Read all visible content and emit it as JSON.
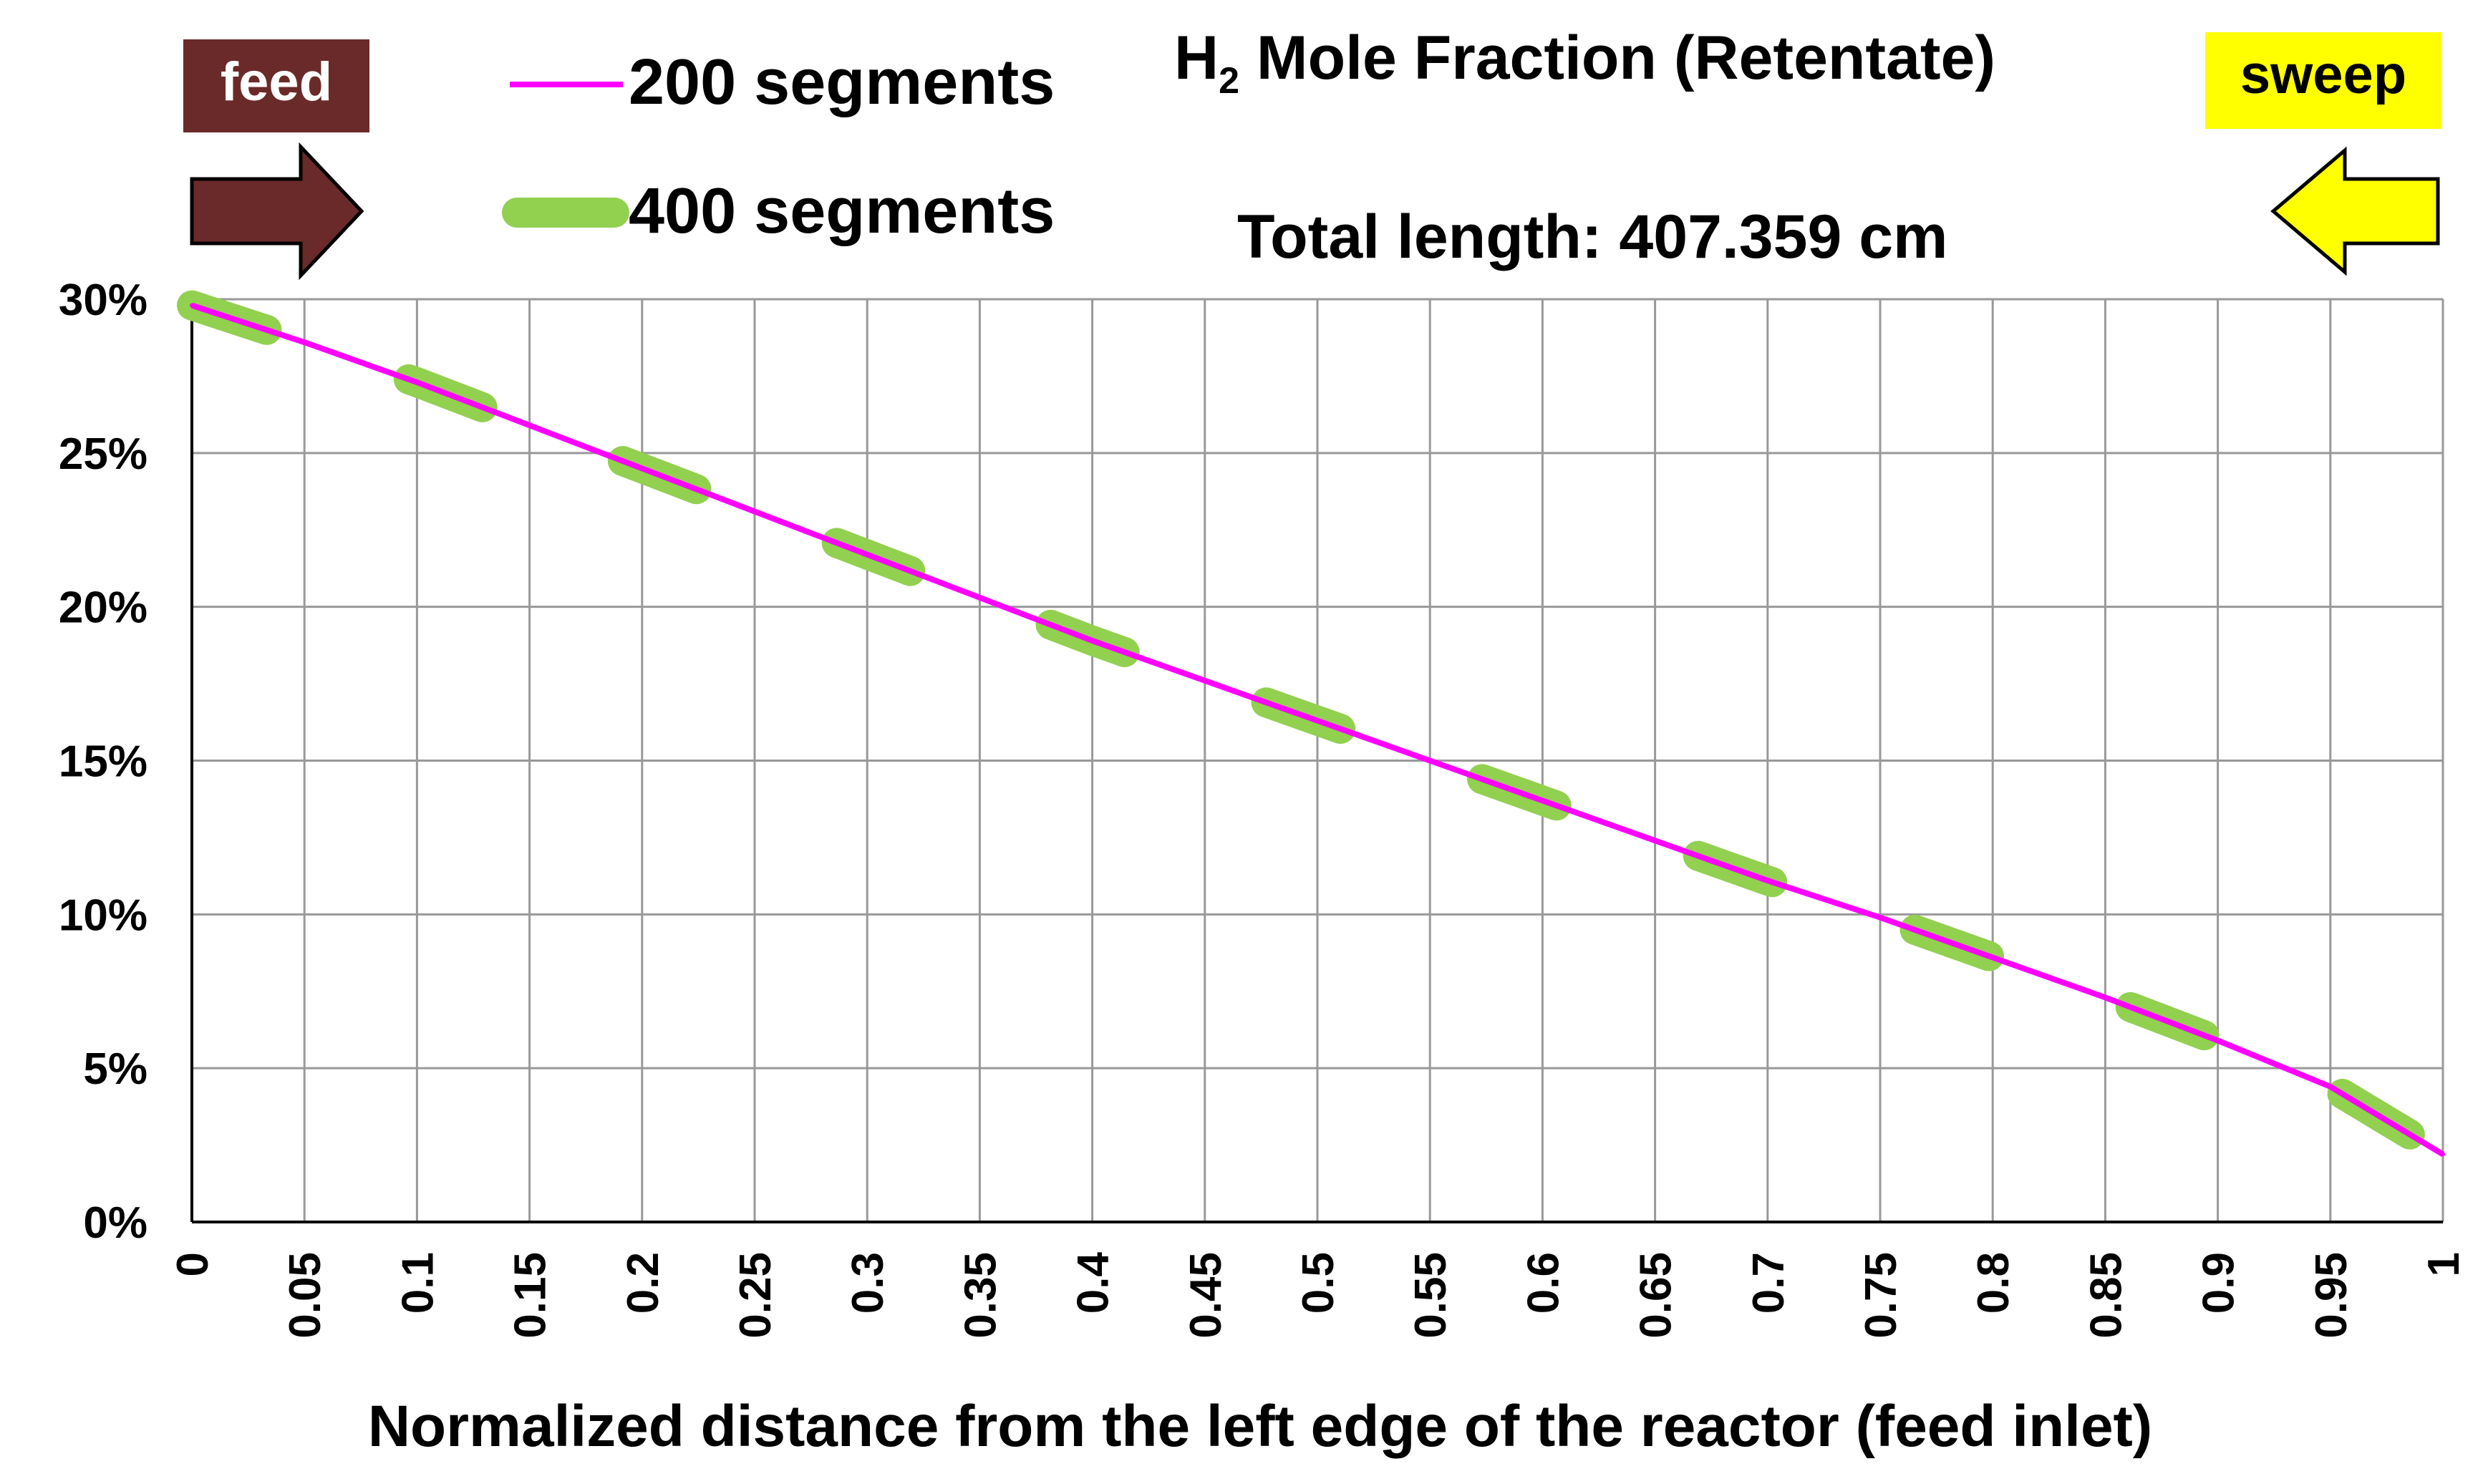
{
  "feed_label": "feed",
  "sweep_label": "sweep",
  "subtitle": "Total length: 407.359 cm",
  "title": {
    "prefix": "H",
    "subscript": "2",
    "rest": " Mole Fraction (Retentate)"
  },
  "colors": {
    "feed_box": "#6b2a2a",
    "feed_arrow": "#6b2a2a",
    "sweep_box": "#ffff00",
    "sweep_arrow": "#ffff00",
    "series_200": "#ff00ff",
    "series_400": "#92d050",
    "grid": "#999999"
  },
  "chart_data": {
    "type": "line",
    "title": "H2 Mole Fraction (Retentate)",
    "xlabel": "Normalized distance from the left edge of the reactor (feed inlet)",
    "ylabel": "",
    "xlim": [
      0,
      1
    ],
    "ylim": [
      0,
      30
    ],
    "grid": true,
    "legend_position": "top-left",
    "x_ticks": [
      "0",
      "0.05",
      "0.1",
      "0.15",
      "0.2",
      "0.25",
      "0.3",
      "0.35",
      "0.4",
      "0.45",
      "0.5",
      "0.55",
      "0.6",
      "0.65",
      "0.7",
      "0.75",
      "0.8",
      "0.85",
      "0.9",
      "0.95",
      "1"
    ],
    "y_ticks": [
      "0%",
      "5%",
      "10%",
      "15%",
      "20%",
      "25%",
      "30%"
    ],
    "x": [
      0,
      0.05,
      0.1,
      0.15,
      0.2,
      0.25,
      0.3,
      0.35,
      0.4,
      0.45,
      0.5,
      0.55,
      0.6,
      0.65,
      0.7,
      0.75,
      0.8,
      0.85,
      0.9,
      0.95,
      1.0
    ],
    "series": [
      {
        "name": "200 segments",
        "style": "solid",
        "values": [
          29.8,
          28.6,
          27.3,
          25.9,
          24.5,
          23.1,
          21.7,
          20.3,
          18.9,
          17.6,
          16.3,
          15.0,
          13.7,
          12.4,
          11.1,
          9.9,
          8.6,
          7.3,
          5.9,
          4.4,
          2.2
        ]
      },
      {
        "name": "400 segments",
        "style": "dashed",
        "values": [
          29.8,
          28.6,
          27.3,
          25.9,
          24.5,
          23.1,
          21.7,
          20.3,
          18.9,
          17.6,
          16.3,
          15.0,
          13.7,
          12.4,
          11.1,
          9.9,
          8.6,
          7.3,
          5.9,
          4.4,
          2.2
        ]
      }
    ]
  }
}
